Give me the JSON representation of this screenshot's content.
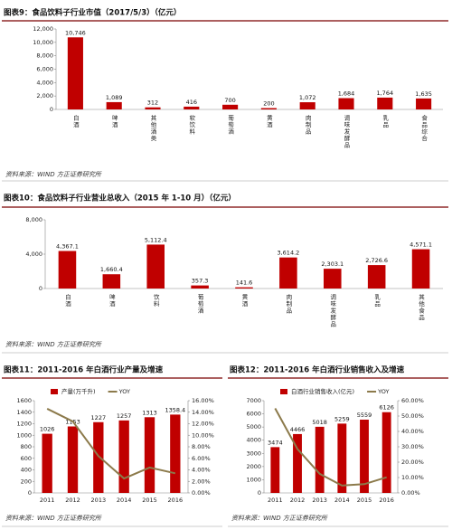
{
  "chart_data": [
    {
      "type": "bar",
      "title": "图表9：食品饮料子行业市值（2017/5/3）（亿元）",
      "categories": [
        "白酒",
        "啤酒",
        "其他酒类",
        "软饮料",
        "葡萄酒",
        "黄酒",
        "肉制品",
        "调味发酵品",
        "乳品",
        "食品综合"
      ],
      "values": [
        10746,
        1089,
        312,
        416,
        700,
        200,
        1072,
        1684,
        1764,
        1635
      ],
      "value_labels": [
        "10,746",
        "1,089",
        "312",
        "416",
        "700",
        "200",
        "1,072",
        "1,684",
        "1,764",
        "1,635"
      ],
      "color": "#c00000",
      "ylim": [
        0,
        12000
      ],
      "yticks": [
        0,
        {
          "value": 2000,
          "label": "2,000"
        },
        {
          "value": 4000,
          "label": "4,000"
        },
        {
          "value": 6000,
          "label": "6,000"
        },
        {
          "value": 8000,
          "label": "8,000"
        },
        {
          "value": 10000,
          "label": "10,000"
        },
        {
          "value": 12000,
          "label": "12,000"
        }
      ],
      "source": "资料来源：WIND  方正证券研究所"
    },
    {
      "type": "bar",
      "title": "图表10：食品饮料子行业营业总收入（2015 年 1-10 月）（亿元）",
      "categories": [
        "白酒",
        "啤酒",
        "饮料",
        "葡萄酒",
        "黄酒",
        "肉制品",
        "调味发酵品",
        "乳品",
        "其他食品"
      ],
      "values": [
        4367.1,
        1660.4,
        5112.4,
        357.3,
        141.6,
        3614.2,
        2303.1,
        2726.6,
        4571.1
      ],
      "value_labels": [
        "4,367.1",
        "1,660.4",
        "5,112.4",
        "357.3",
        "141.6",
        "3,614.2",
        "2,303.1",
        "2,726.6",
        "4,571.1"
      ],
      "color": "#c00000",
      "ylim": [
        0,
        8000
      ],
      "yticks": [
        0,
        {
          "value": 4000,
          "label": "4,000"
        },
        {
          "value": 8000,
          "label": "8,000"
        }
      ],
      "source": "资料来源：WIND  方正证券研究所"
    },
    {
      "type": "combo",
      "title": "图表11：2011-2016 年白酒行业产量及增速",
      "categories": [
        "2011",
        "2012",
        "2013",
        "2014",
        "2015",
        "2016"
      ],
      "series": [
        {
          "name": "产量(万千升)",
          "color": "#c00000",
          "values": [
            1026,
            1153,
            1227,
            1257,
            1313,
            1358.4
          ]
        },
        {
          "name": "YOY",
          "color": "#8c7a4b",
          "axis": "y2",
          "values": [
            14.6,
            12.4,
            6.4,
            2.5,
            4.4,
            3.4
          ]
        }
      ],
      "ylim": [
        0,
        1600
      ],
      "yticks": [
        0,
        200,
        400,
        600,
        800,
        1000,
        1200,
        1400,
        1600
      ],
      "y2lim": [
        0,
        16
      ],
      "y2ticks": [
        {
          "value": 0,
          "label": "0.00%"
        },
        {
          "value": 2,
          "label": "2.00%"
        },
        {
          "value": 4,
          "label": "4.00%"
        },
        {
          "value": 6,
          "label": "6.00%"
        },
        {
          "value": 8,
          "label": "8.00%"
        },
        {
          "value": 10,
          "label": "10.00%"
        },
        {
          "value": 12,
          "label": "12.00%"
        },
        {
          "value": 14,
          "label": "14.00%"
        },
        {
          "value": 16,
          "label": "16.00%"
        }
      ],
      "source": "资料来源：WIND  方正证券研究所"
    },
    {
      "type": "combo",
      "title": "图表12：2011-2016 年白酒行业销售收入及增速",
      "categories": [
        "2011",
        "2012",
        "2013",
        "2014",
        "2015",
        "2016"
      ],
      "series": [
        {
          "name": "白酒行业销售收入(亿元)",
          "color": "#c00000",
          "values": [
            3474,
            4466,
            5018,
            5259,
            5559,
            6126
          ]
        },
        {
          "name": "YOY",
          "color": "#8c7a4b",
          "axis": "y2",
          "values": [
            55.0,
            28.6,
            12.4,
            4.8,
            5.7,
            10.2
          ]
        }
      ],
      "ylim": [
        0,
        7000
      ],
      "yticks": [
        0,
        1000,
        2000,
        3000,
        4000,
        5000,
        6000,
        7000
      ],
      "y2lim": [
        0,
        60
      ],
      "y2ticks": [
        {
          "value": 0,
          "label": "0.00%"
        },
        {
          "value": 10,
          "label": "10.00%"
        },
        {
          "value": 20,
          "label": "20.00%"
        },
        {
          "value": 30,
          "label": "30.00%"
        },
        {
          "value": 40,
          "label": "40.00%"
        },
        {
          "value": 50,
          "label": "50.00%"
        },
        {
          "value": 60,
          "label": "60.00%"
        }
      ],
      "source": "资料来源：WIND  方正证券研究所"
    }
  ]
}
